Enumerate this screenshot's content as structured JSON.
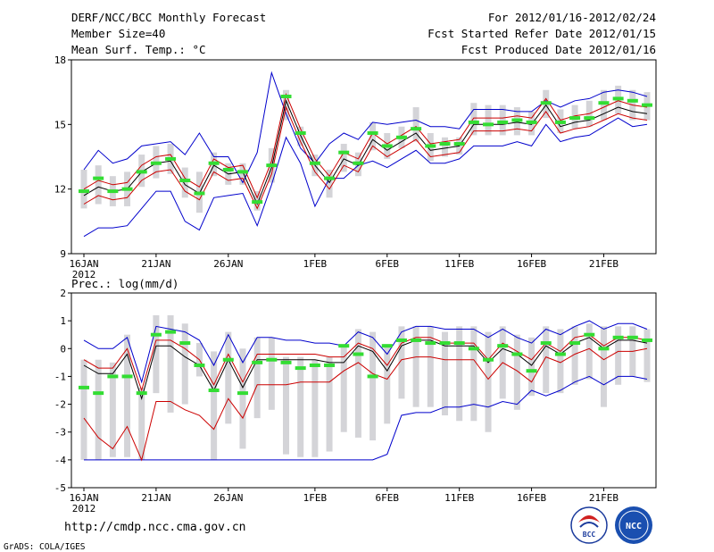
{
  "header": {
    "title": "DERF/NCC/BCC Monthly Forecast",
    "member_size": "Member Size=40",
    "variable": "Mean Surf. Temp.: °C",
    "period": "For 2012/01/16-2012/02/24",
    "started": "Fcst Started Refer Date 2012/01/15",
    "produced": "Fcst Produced Date 2012/01/16"
  },
  "footer": {
    "url": "http://cmdp.ncc.cma.gov.cn",
    "credit": "GrADS: COLA/IGES",
    "logo_bcc": "BCC",
    "logo_ncc": "NCC"
  },
  "colors": {
    "max_min": "#0000cc",
    "mean": "#000000",
    "quartile": "#cc0000",
    "median": "#33dd33",
    "box": "#d4d4d8",
    "axis": "#000000"
  },
  "chart_data": [
    {
      "type": "box-line",
      "id": "temp",
      "title": "",
      "ylabel": "Mean Surf. Temp.: °C",
      "ylim": [
        9,
        18
      ],
      "yticks": [
        9,
        12,
        15,
        18
      ],
      "x_tick_labels": [
        "16JAN",
        "21JAN",
        "26JAN",
        "1FEB",
        "6FEB",
        "11FEB",
        "16FEB",
        "21FEB"
      ],
      "x_tick_days": [
        0,
        5,
        10,
        16,
        21,
        26,
        31,
        36
      ],
      "year_label": "2012",
      "days": 40,
      "mean": [
        11.7,
        12.1,
        11.9,
        12.0,
        12.8,
        13.2,
        13.3,
        12.2,
        11.8,
        13.1,
        12.7,
        12.8,
        11.3,
        13.0,
        16.1,
        14.5,
        13.1,
        12.3,
        13.4,
        13.1,
        14.3,
        13.8,
        14.2,
        14.6,
        13.8,
        13.9,
        14.0,
        15.0,
        15.0,
        15.0,
        15.1,
        15.0,
        15.9,
        14.9,
        15.1,
        15.2,
        15.5,
        15.8,
        15.6,
        15.5
      ],
      "q_high": [
        12.0,
        12.4,
        12.2,
        12.3,
        13.1,
        13.5,
        13.6,
        12.5,
        12.1,
        13.4,
        13.0,
        13.1,
        11.6,
        13.3,
        16.4,
        14.8,
        13.4,
        12.6,
        13.7,
        13.4,
        14.6,
        14.1,
        14.5,
        14.9,
        14.1,
        14.2,
        14.3,
        15.3,
        15.3,
        15.3,
        15.4,
        15.3,
        16.2,
        15.2,
        15.4,
        15.5,
        15.8,
        16.1,
        15.9,
        15.8
      ],
      "q_low": [
        11.3,
        11.7,
        11.5,
        11.6,
        12.4,
        12.8,
        12.9,
        11.9,
        11.5,
        12.8,
        12.4,
        12.5,
        11.1,
        12.7,
        15.8,
        14.2,
        12.8,
        12.0,
        13.1,
        12.8,
        14.0,
        13.5,
        13.9,
        14.3,
        13.5,
        13.6,
        13.7,
        14.7,
        14.7,
        14.7,
        14.8,
        14.7,
        15.6,
        14.6,
        14.8,
        14.9,
        15.2,
        15.5,
        15.3,
        15.2
      ],
      "max": [
        12.9,
        13.8,
        13.2,
        13.4,
        14.0,
        14.1,
        14.2,
        13.6,
        14.6,
        13.5,
        13.5,
        12.3,
        13.7,
        17.4,
        15.5,
        13.9,
        13.2,
        14.1,
        14.6,
        14.3,
        15.1,
        15.0,
        15.1,
        15.2,
        14.9,
        14.9,
        14.8,
        15.7,
        15.7,
        15.7,
        15.6,
        15.6,
        16.1,
        15.8,
        16.1,
        16.2,
        16.5,
        16.6,
        16.5,
        16.3
      ],
      "min": [
        9.8,
        10.2,
        10.2,
        10.3,
        11.1,
        11.9,
        11.9,
        10.5,
        10.1,
        11.6,
        11.7,
        11.8,
        10.3,
        12.2,
        14.4,
        13.2,
        11.2,
        12.5,
        12.5,
        13.1,
        13.3,
        13.0,
        13.4,
        13.8,
        13.2,
        13.2,
        13.4,
        14.0,
        14.0,
        14.0,
        14.2,
        14.0,
        15.0,
        14.2,
        14.4,
        14.5,
        14.9,
        15.3,
        14.9,
        15.0
      ],
      "median": [
        11.9,
        12.5,
        11.9,
        12.0,
        12.8,
        13.2,
        13.4,
        12.4,
        11.8,
        13.2,
        12.9,
        12.8,
        11.4,
        13.1,
        16.3,
        14.6,
        13.2,
        12.5,
        13.7,
        13.2,
        14.6,
        14.0,
        14.4,
        14.8,
        14.0,
        14.1,
        14.1,
        15.1,
        15.0,
        15.1,
        15.2,
        15.1,
        16.0,
        15.1,
        15.3,
        15.3,
        16.0,
        16.2,
        16.1,
        15.9
      ],
      "box_high": [
        12.9,
        13.1,
        12.6,
        12.8,
        13.6,
        14.0,
        14.1,
        13.0,
        12.8,
        13.7,
        13.2,
        13.2,
        11.9,
        13.9,
        16.6,
        14.9,
        13.6,
        12.9,
        14.1,
        13.7,
        15.1,
        14.6,
        14.9,
        15.8,
        14.6,
        14.4,
        14.4,
        16.0,
        15.9,
        15.9,
        15.8,
        15.6,
        16.6,
        15.7,
        15.9,
        16.1,
        16.6,
        16.8,
        16.6,
        16.5
      ],
      "box_low": [
        11.1,
        11.3,
        11.2,
        11.2,
        12.1,
        12.5,
        12.7,
        11.6,
        10.9,
        12.6,
        12.2,
        12.2,
        11.0,
        12.3,
        15.2,
        14.0,
        12.6,
        11.6,
        12.8,
        12.6,
        13.8,
        13.4,
        13.9,
        14.2,
        13.3,
        13.5,
        13.6,
        14.5,
        14.5,
        14.5,
        14.5,
        14.5,
        15.3,
        14.6,
        14.8,
        14.9,
        15.2,
        15.5,
        15.2,
        15.2
      ]
    },
    {
      "type": "box-line",
      "id": "prec",
      "title": "",
      "ylabel": "Prec.: log(mm/d)",
      "ylim": [
        -5,
        2
      ],
      "yticks": [
        -5,
        -4,
        -3,
        -2,
        -1,
        0,
        1,
        2
      ],
      "x_tick_labels": [
        "16JAN",
        "21JAN",
        "26JAN",
        "1FEB",
        "6FEB",
        "11FEB",
        "16FEB",
        "21FEB"
      ],
      "x_tick_days": [
        0,
        5,
        10,
        16,
        21,
        26,
        31,
        36
      ],
      "year_label": "2012",
      "days": 40,
      "mean": [
        -0.6,
        -0.9,
        -0.9,
        -0.2,
        -1.8,
        0.1,
        0.1,
        -0.3,
        -0.6,
        -1.5,
        -0.4,
        -1.4,
        -0.4,
        -0.4,
        -0.4,
        -0.4,
        -0.4,
        -0.5,
        -0.5,
        0.1,
        -0.1,
        -0.8,
        0.1,
        0.3,
        0.3,
        0.1,
        0.1,
        0.1,
        -0.5,
        0.0,
        -0.2,
        -0.6,
        0.1,
        -0.2,
        0.2,
        0.4,
        0.0,
        0.3,
        0.3,
        0.2
      ],
      "q_high": [
        -0.4,
        -0.7,
        -0.7,
        0.0,
        -1.5,
        0.3,
        0.3,
        0.0,
        -0.4,
        -1.3,
        -0.2,
        -1.2,
        -0.2,
        -0.2,
        -0.2,
        -0.2,
        -0.2,
        -0.3,
        -0.3,
        0.2,
        0.0,
        -0.6,
        0.2,
        0.4,
        0.4,
        0.2,
        0.2,
        0.2,
        -0.4,
        0.2,
        -0.1,
        -0.4,
        0.2,
        -0.1,
        0.4,
        0.5,
        0.1,
        0.4,
        0.4,
        0.3
      ],
      "q_low": [
        -2.5,
        -3.2,
        -3.6,
        -2.8,
        -4.0,
        -1.9,
        -1.9,
        -2.2,
        -2.4,
        -2.9,
        -1.8,
        -2.5,
        -1.3,
        -1.3,
        -1.3,
        -1.2,
        -1.2,
        -1.2,
        -0.8,
        -0.5,
        -0.9,
        -1.1,
        -0.4,
        -0.3,
        -0.3,
        -0.4,
        -0.4,
        -0.4,
        -1.1,
        -0.5,
        -0.8,
        -1.2,
        -0.3,
        -0.5,
        -0.2,
        0.0,
        -0.4,
        -0.1,
        -0.1,
        0.0
      ],
      "max": [
        0.3,
        0.0,
        0.0,
        0.4,
        -1.2,
        0.8,
        0.7,
        0.6,
        0.3,
        -0.6,
        0.5,
        -0.5,
        0.4,
        0.4,
        0.3,
        0.3,
        0.2,
        0.2,
        0.1,
        0.6,
        0.4,
        -0.2,
        0.6,
        0.8,
        0.8,
        0.7,
        0.7,
        0.7,
        0.4,
        0.7,
        0.4,
        0.2,
        0.7,
        0.5,
        0.8,
        1.0,
        0.7,
        0.9,
        0.9,
        0.7
      ],
      "min": [
        -4.0,
        -4.0,
        -4.0,
        -4.0,
        -4.0,
        -4.0,
        -4.0,
        -4.0,
        -4.0,
        -4.0,
        -4.0,
        -4.0,
        -4.0,
        -4.0,
        -4.0,
        -4.0,
        -4.0,
        -4.0,
        -4.0,
        -4.0,
        -4.0,
        -3.8,
        -2.4,
        -2.3,
        -2.3,
        -2.1,
        -2.1,
        -2.0,
        -2.1,
        -1.9,
        -2.0,
        -1.5,
        -1.7,
        -1.5,
        -1.2,
        -1.0,
        -1.3,
        -1.0,
        -1.0,
        -1.1
      ],
      "median": [
        -1.4,
        -1.6,
        -1.0,
        -1.0,
        -1.6,
        0.5,
        0.6,
        0.2,
        -0.6,
        -1.5,
        -0.4,
        -1.6,
        -0.5,
        -0.4,
        -0.5,
        -0.7,
        -0.6,
        -0.6,
        0.1,
        -0.2,
        -1.0,
        0.1,
        0.3,
        0.3,
        0.2,
        0.2,
        0.2,
        0.0,
        -0.4,
        0.1,
        -0.2,
        -0.8,
        0.2,
        -0.2,
        0.2,
        0.5,
        0.0,
        0.4,
        0.4,
        0.3
      ],
      "box_high": [
        -0.4,
        -0.4,
        -0.5,
        0.5,
        -1.4,
        1.2,
        1.2,
        0.9,
        0.2,
        -0.1,
        0.6,
        0.0,
        0.4,
        0.4,
        -0.3,
        -0.3,
        -0.4,
        -0.3,
        0.1,
        0.7,
        0.6,
        0.1,
        0.8,
        0.8,
        0.8,
        0.6,
        0.8,
        0.8,
        0.6,
        0.8,
        0.5,
        0.4,
        0.8,
        0.7,
        0.8,
        0.9,
        0.8,
        0.8,
        0.8,
        0.7
      ],
      "box_low": [
        -4.0,
        -4.0,
        -3.9,
        -3.9,
        -4.0,
        -1.6,
        -2.3,
        -2.0,
        -1.0,
        -4.0,
        -2.7,
        -3.6,
        -2.5,
        -2.2,
        -3.8,
        -3.9,
        -3.9,
        -3.7,
        -3.0,
        -3.2,
        -3.3,
        -2.7,
        -1.8,
        -2.1,
        -2.1,
        -2.4,
        -2.6,
        -2.6,
        -3.0,
        -1.8,
        -2.2,
        -1.7,
        -1.6,
        -1.6,
        -1.3,
        -1.1,
        -2.1,
        -1.3,
        -1.0,
        -1.2
      ]
    }
  ]
}
